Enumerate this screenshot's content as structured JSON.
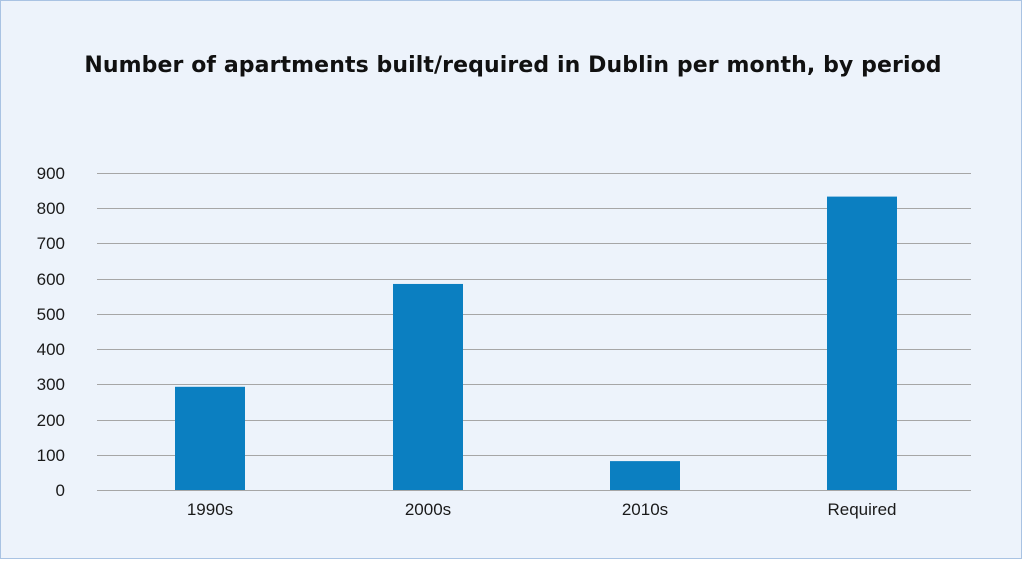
{
  "chart_data": {
    "type": "bar",
    "title": "Number of apartments built/required in Dublin per month, by period",
    "categories": [
      "1990s",
      "2000s",
      "2010s",
      "Required"
    ],
    "values": [
      293,
      585,
      82,
      833
    ],
    "ylim": [
      0,
      900
    ],
    "yticks": [
      0,
      100,
      200,
      300,
      400,
      500,
      600,
      700,
      800,
      900
    ],
    "xlabel": "",
    "ylabel": "",
    "grid": true,
    "legend": "none",
    "bar_color": "#0b7fc1",
    "grid_color": "#a6a6a6",
    "background_color": "#edf3fb"
  }
}
